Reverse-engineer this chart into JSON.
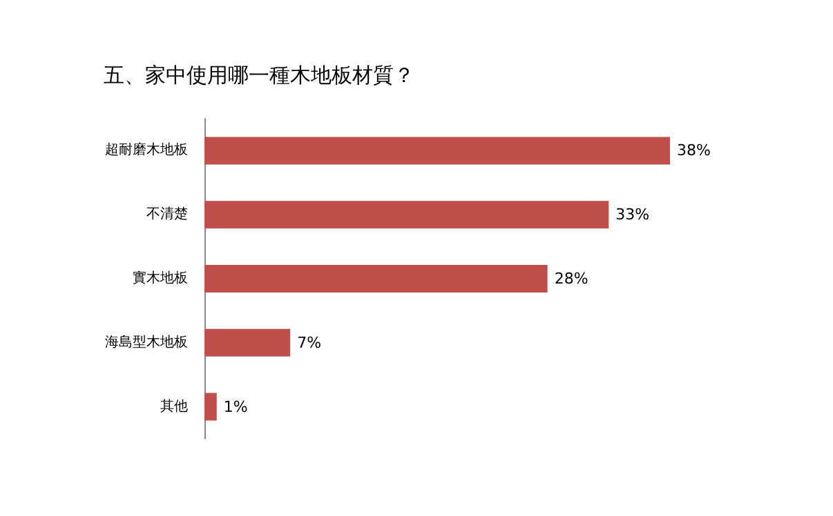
{
  "chart_data": {
    "type": "bar",
    "orientation": "horizontal",
    "title": "五、家中使用哪一種木地板材質？",
    "categories": [
      "超耐磨木地板",
      "不清楚",
      "實木地板",
      "海島型木地板",
      "其他"
    ],
    "values": [
      38,
      33,
      28,
      7,
      1
    ],
    "value_labels": [
      "38%",
      "33%",
      "28%",
      "7%",
      "1%"
    ],
    "color": "#c0504d"
  }
}
